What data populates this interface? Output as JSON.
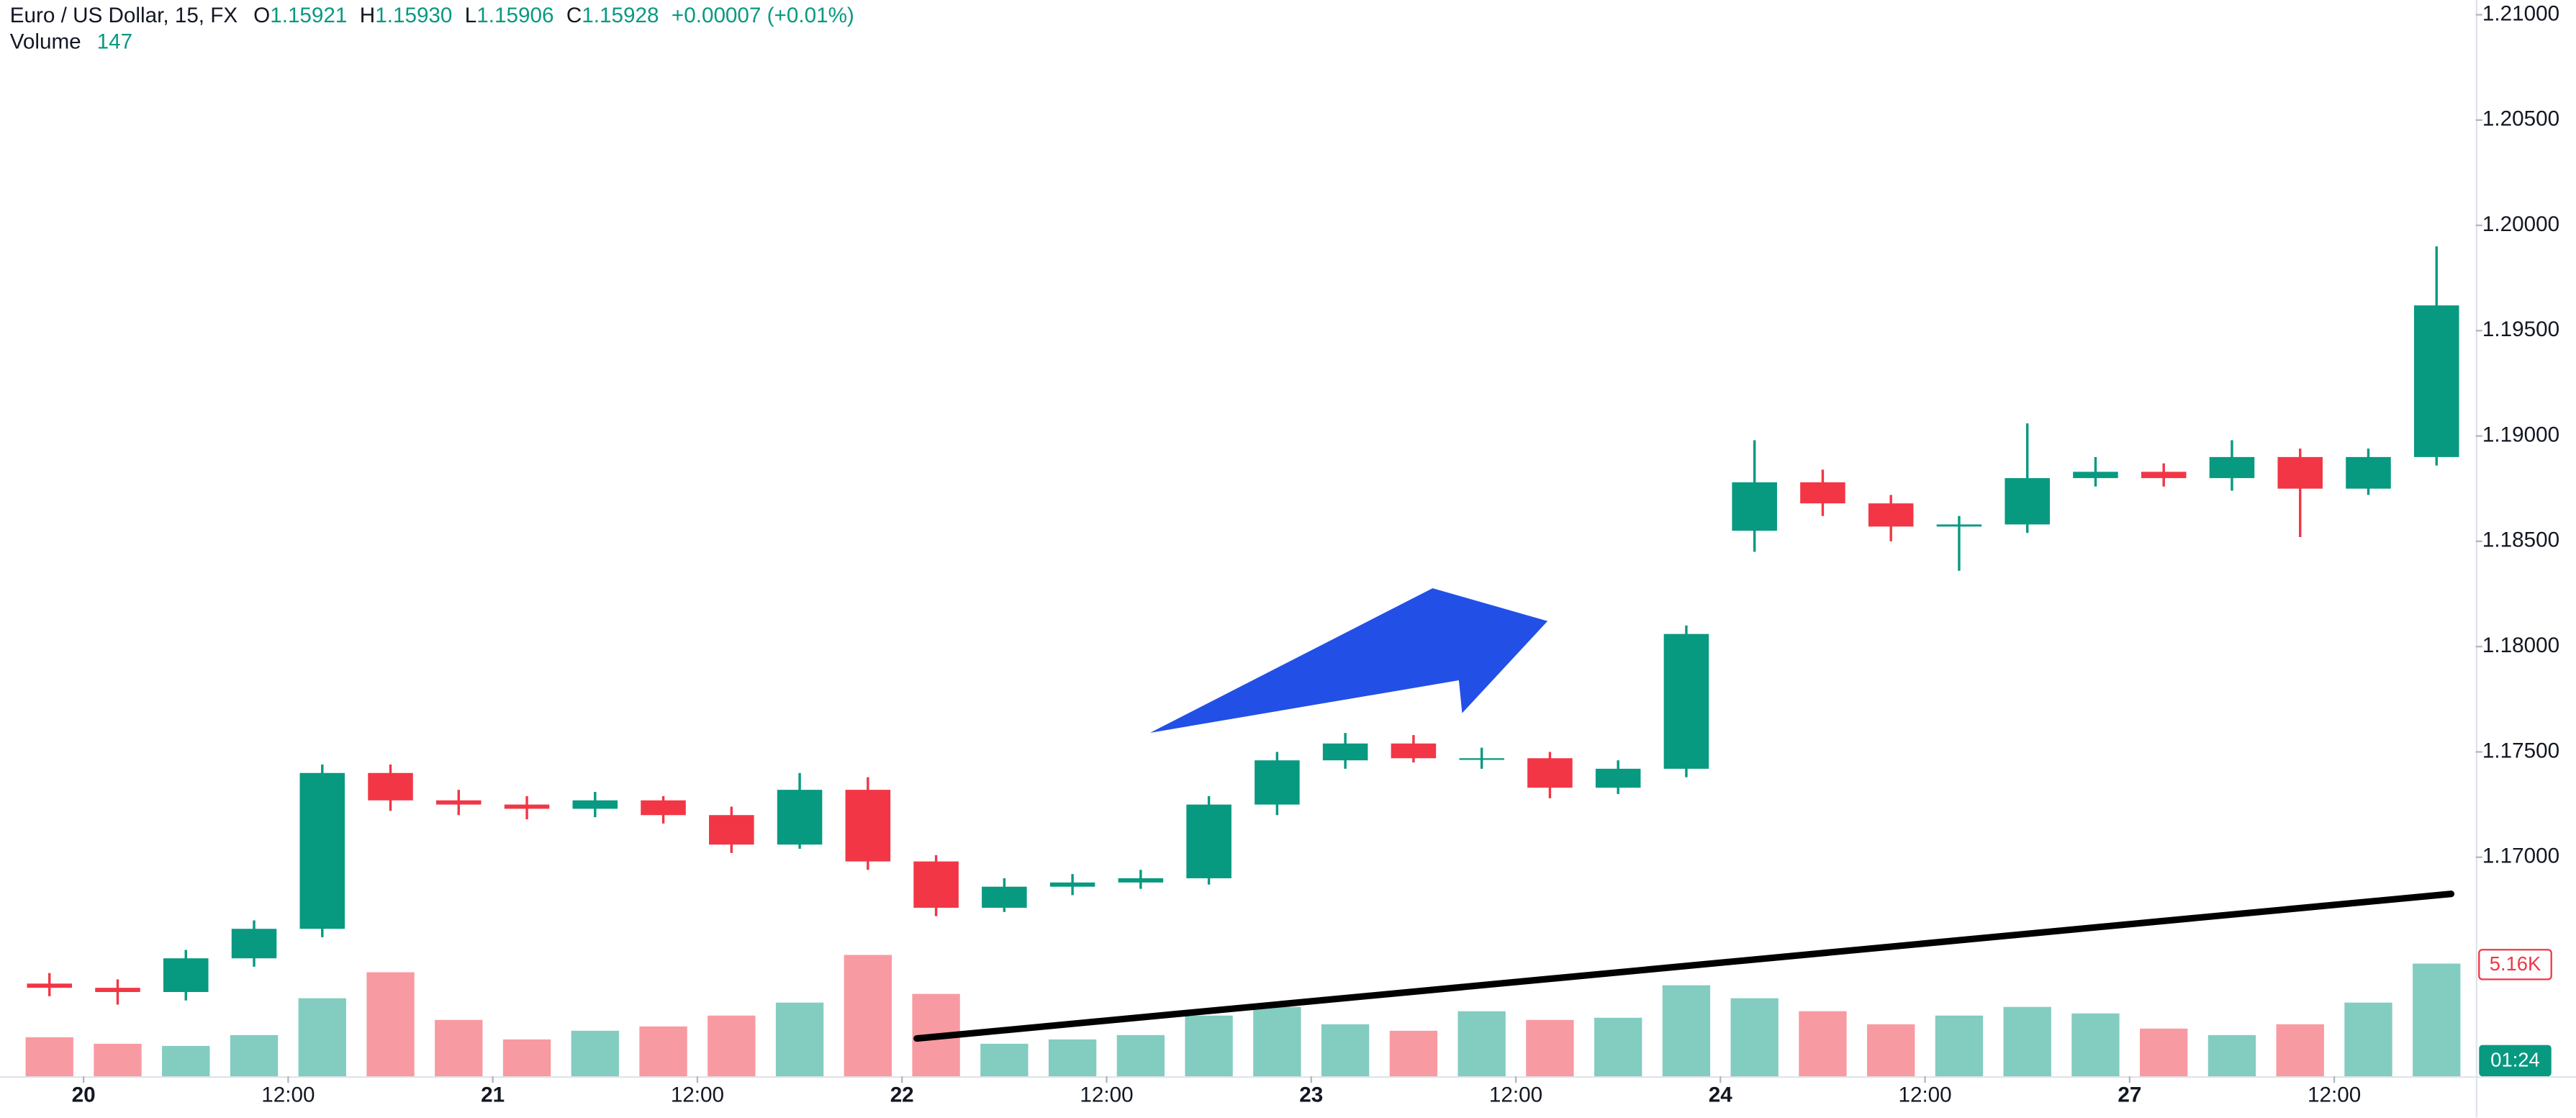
{
  "chart_data": {
    "type": "candlestick",
    "title": "Euro / US Dollar, 15, FX",
    "ohlc_labels": {
      "o": "O",
      "o_value": "1.15921",
      "h": "H",
      "h_value": "1.15930",
      "l": "L",
      "l_value": "1.15906",
      "c": "C",
      "c_value": "1.15928",
      "change": "+0.00007 (+0.01%)"
    },
    "volume_title": "Volume",
    "volume_value": "147",
    "volume_axis_label": "5.16K",
    "countdown": "01:24",
    "x": [
      -2,
      2,
      6,
      10,
      14,
      18,
      22,
      26,
      30,
      34,
      38,
      42,
      46,
      50,
      54,
      58,
      62,
      66,
      70,
      74,
      78,
      82,
      86,
      90,
      94,
      98,
      102,
      106,
      110,
      114,
      118,
      122,
      126,
      130,
      134,
      138
    ],
    "open": [
      1.164,
      1.1638,
      1.1636,
      1.1652,
      1.1666,
      1.174,
      1.1727,
      1.1725,
      1.1723,
      1.1727,
      1.172,
      1.1706,
      1.1732,
      1.1698,
      1.1676,
      1.1686,
      1.1688,
      1.169,
      1.1725,
      1.1746,
      1.1754,
      1.1747,
      1.1747,
      1.1733,
      1.1742,
      1.1855,
      1.1878,
      1.1868,
      1.1857,
      1.1858,
      1.188,
      1.1883,
      1.188,
      1.189,
      1.1875,
      1.189
    ],
    "high": [
      1.1645,
      1.1642,
      1.1656,
      1.167,
      1.1744,
      1.1744,
      1.1732,
      1.1729,
      1.1731,
      1.1729,
      1.1724,
      1.174,
      1.1738,
      1.1701,
      1.169,
      1.1692,
      1.1694,
      1.1729,
      1.175,
      1.1759,
      1.1758,
      1.1752,
      1.175,
      1.1746,
      1.181,
      1.1898,
      1.1884,
      1.1872,
      1.1862,
      1.1906,
      1.189,
      1.1887,
      1.1898,
      1.1894,
      1.1894,
      1.199
    ],
    "low": [
      1.1634,
      1.163,
      1.1632,
      1.1648,
      1.1662,
      1.1722,
      1.172,
      1.1718,
      1.1719,
      1.1716,
      1.1702,
      1.1704,
      1.1694,
      1.1672,
      1.1674,
      1.1682,
      1.1685,
      1.1687,
      1.172,
      1.1742,
      1.1745,
      1.1742,
      1.1728,
      1.173,
      1.1738,
      1.1845,
      1.1862,
      1.185,
      1.1836,
      1.1854,
      1.1876,
      1.1876,
      1.1874,
      1.1852,
      1.1872,
      1.1886
    ],
    "close": [
      1.1638,
      1.1636,
      1.1652,
      1.1666,
      1.174,
      1.1727,
      1.1725,
      1.1723,
      1.1727,
      1.172,
      1.1706,
      1.1732,
      1.1698,
      1.1676,
      1.1686,
      1.1688,
      1.169,
      1.1725,
      1.1746,
      1.1754,
      1.1747,
      1.1747,
      1.1733,
      1.1742,
      1.1806,
      1.1878,
      1.1868,
      1.1857,
      1.1858,
      1.188,
      1.1883,
      1.188,
      1.189,
      1.1875,
      1.189,
      1.1962
    ],
    "volume": [
      1800,
      1500,
      1400,
      1900,
      3600,
      4800,
      2600,
      1700,
      2100,
      2300,
      2800,
      3400,
      5600,
      3800,
      1500,
      1700,
      1900,
      2800,
      3200,
      2400,
      2100,
      3000,
      2600,
      2700,
      4200,
      3600,
      3000,
      2400,
      2800,
      3200,
      2900,
      2200,
      1900,
      2400,
      3400,
      5200
    ],
    "up_color": "#089981",
    "down_color": "#f23645",
    "xlim": [
      -4.9,
      140.3
    ],
    "xticks": [
      {
        "value": 0,
        "label": "20"
      },
      {
        "value": 12,
        "label": "12:00"
      },
      {
        "value": 24,
        "label": "21"
      },
      {
        "value": 36,
        "label": "12:00"
      },
      {
        "value": 48,
        "label": "22"
      },
      {
        "value": 60,
        "label": "12:00"
      },
      {
        "value": 72,
        "label": "23"
      },
      {
        "value": 84,
        "label": "12:00"
      },
      {
        "value": 96,
        "label": "24"
      },
      {
        "value": 108,
        "label": "12:00"
      },
      {
        "value": 120,
        "label": "27"
      },
      {
        "value": 132,
        "label": "12:00"
      }
    ],
    "ylim": [
      1.1596,
      1.2107
    ],
    "yticks": [
      {
        "value": 1.21,
        "label": "1.21000"
      },
      {
        "value": 1.205,
        "label": "1.20500"
      },
      {
        "value": 1.2,
        "label": "1.20000"
      },
      {
        "value": 1.195,
        "label": "1.19500"
      },
      {
        "value": 1.19,
        "label": "1.19000"
      },
      {
        "value": 1.185,
        "label": "1.18500"
      },
      {
        "value": 1.18,
        "label": "1.18000"
      },
      {
        "value": 1.175,
        "label": "1.17500"
      },
      {
        "value": 1.17,
        "label": "1.17000"
      }
    ],
    "vlim": [
      0,
      16000
    ]
  }
}
